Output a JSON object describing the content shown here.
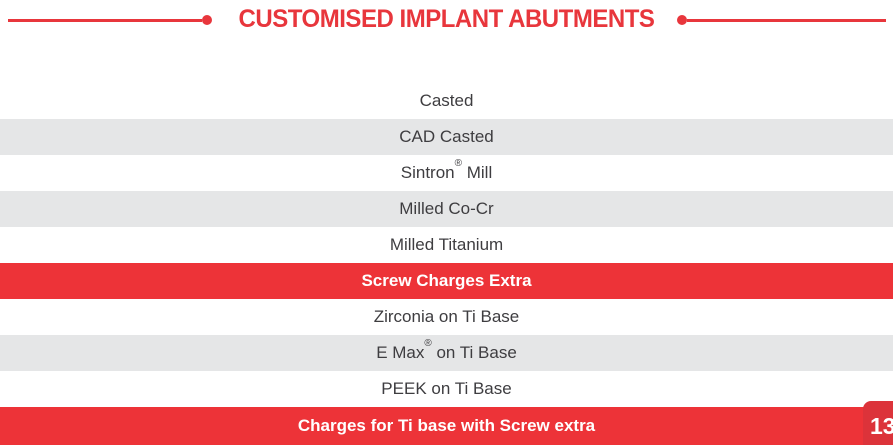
{
  "page": {
    "title": "CUSTOMISED IMPLANT ABUTMENTS",
    "page_number": "13",
    "colors": {
      "accent_red": "#ed3338",
      "header_red": "#e8363c",
      "alt_row_gray": "#e5e6e7",
      "row_text": "#3e3d40",
      "banner_text": "#ffffff",
      "page_tab_red": "#dc333a"
    }
  },
  "rows": [
    {
      "label": "Casted",
      "style": "plain",
      "pre": "Casted",
      "sup": "",
      "post": ""
    },
    {
      "label": "CAD Casted",
      "style": "alt",
      "pre": "CAD Casted",
      "sup": "",
      "post": ""
    },
    {
      "label": "Sintron® Mill",
      "style": "plain",
      "pre": "Sintron",
      "sup": "®",
      "post": " Mill"
    },
    {
      "label": "Milled Co-Cr",
      "style": "alt",
      "pre": "Milled Co-Cr",
      "sup": "",
      "post": ""
    },
    {
      "label": "Milled Titanium",
      "style": "plain",
      "pre": "Milled Titanium",
      "sup": "",
      "post": ""
    },
    {
      "label": "Screw Charges Extra",
      "style": "banner",
      "pre": "Screw Charges Extra",
      "sup": "",
      "post": ""
    },
    {
      "label": "Zirconia on Ti Base",
      "style": "plain",
      "pre": "Zirconia on Ti Base",
      "sup": "",
      "post": ""
    },
    {
      "label": "E Max® on Ti Base",
      "style": "alt",
      "pre": "E Max",
      "sup": "®",
      "post": " on Ti Base"
    },
    {
      "label": "PEEK on Ti Base",
      "style": "plain",
      "pre": "PEEK on Ti Base",
      "sup": "",
      "post": ""
    },
    {
      "label": "Charges for Ti base with Screw extra",
      "style": "banner",
      "pre": "Charges for Ti base with Screw extra",
      "sup": "",
      "post": ""
    }
  ]
}
